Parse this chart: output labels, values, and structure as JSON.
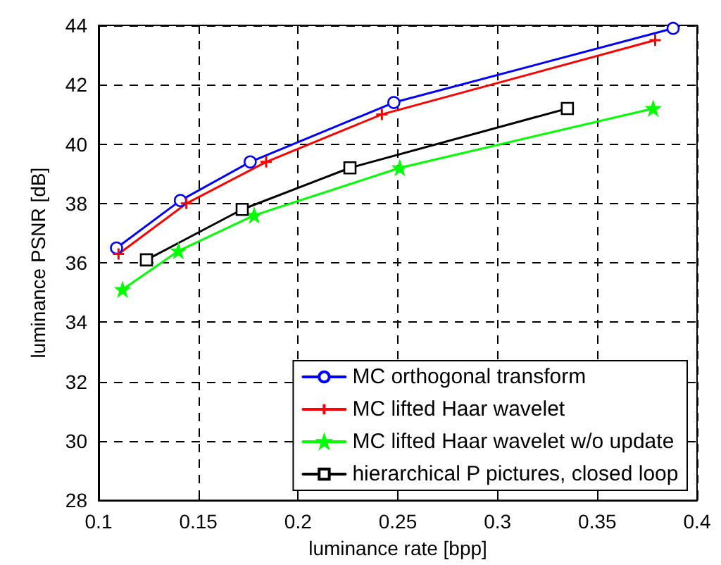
{
  "chart_data": {
    "type": "line",
    "xlabel": "luminance rate [bpp]",
    "ylabel": "luminance PSNR [dB]",
    "xlim": [
      0.1,
      0.4
    ],
    "xticks": [
      0.1,
      0.15,
      0.2,
      0.25,
      0.3,
      0.35,
      0.4
    ],
    "ylim": [
      28,
      44
    ],
    "yticks": [
      28,
      30,
      32,
      34,
      36,
      38,
      40,
      42,
      44
    ],
    "grid": true,
    "legend": "bottom right",
    "series": [
      {
        "name": "MC orthogonal transform",
        "color": "#0000ff",
        "marker": "circle",
        "x": [
          0.109,
          0.141,
          0.176,
          0.248,
          0.388
        ],
        "values": [
          36.5,
          38.1,
          39.4,
          41.4,
          43.9
        ]
      },
      {
        "name": "MC lifted Haar wavelet",
        "color": "#ff0000",
        "marker": "cross",
        "x": [
          0.11,
          0.144,
          0.184,
          0.242,
          0.379
        ],
        "values": [
          36.3,
          38.0,
          39.4,
          41.0,
          43.5
        ]
      },
      {
        "name": "MC lifted Haar wavelet w/o update",
        "color": "#00ff00",
        "marker": "star",
        "x": [
          0.112,
          0.14,
          0.178,
          0.251,
          0.378
        ],
        "values": [
          35.1,
          36.4,
          37.6,
          39.2,
          41.2
        ]
      },
      {
        "name": "hierarchical P pictures, closed loop",
        "color": "#000000",
        "marker": "square",
        "x": [
          0.124,
          0.172,
          0.226,
          0.335
        ],
        "values": [
          36.1,
          37.8,
          39.2,
          41.2
        ]
      }
    ]
  }
}
